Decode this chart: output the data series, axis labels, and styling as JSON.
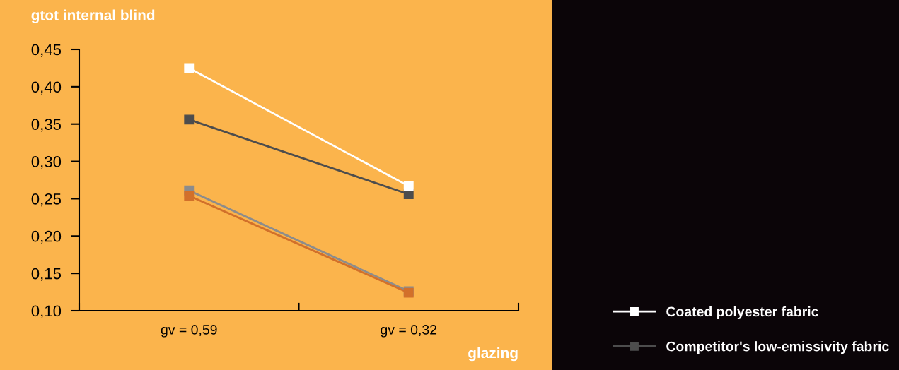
{
  "chart_data": {
    "type": "line",
    "ylabel": "gtot internal blind",
    "xlabel": "glazing",
    "categories": [
      "gv = 0,59",
      "gv = 0,32"
    ],
    "series": [
      {
        "color": "#d2702a",
        "values": [
          0.254,
          0.124
        ]
      },
      {
        "color": "#8c8c8c",
        "values": [
          0.261,
          0.126
        ]
      },
      {
        "name": "Coated polyester fabric",
        "color": "#ffffff",
        "values": [
          0.425,
          0.267
        ]
      },
      {
        "name": "Competitor's low-emissivity fabric",
        "color": "#4d4d4d",
        "values": [
          0.356,
          0.256
        ]
      }
    ],
    "ylim": [
      0.1,
      0.45
    ],
    "yticks": [
      {
        "value": 0.1,
        "label": "0,10"
      },
      {
        "value": 0.15,
        "label": "0,15"
      },
      {
        "value": 0.2,
        "label": "0,20"
      },
      {
        "value": 0.25,
        "label": "0,25"
      },
      {
        "value": 0.3,
        "label": "0,30"
      },
      {
        "value": 0.35,
        "label": "0,35"
      },
      {
        "value": 0.4,
        "label": "0,40"
      },
      {
        "value": 0.45,
        "label": "0,45"
      }
    ],
    "marker": "square",
    "line_style": "solid",
    "grid": false,
    "legend": "right"
  }
}
